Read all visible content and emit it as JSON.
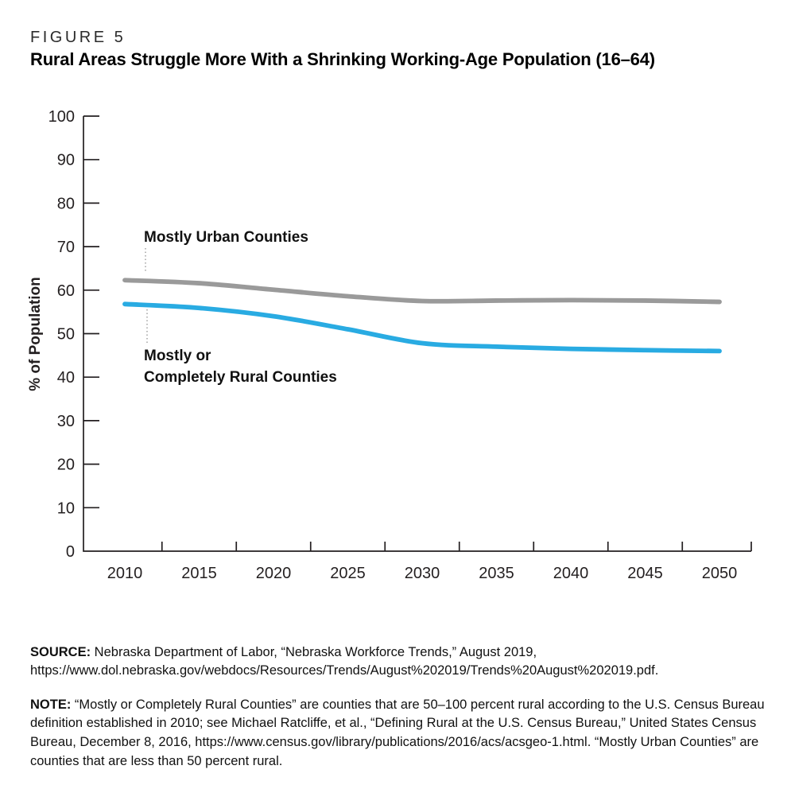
{
  "figure": {
    "label": "FIGURE 5",
    "title": "Rural Areas Struggle More With a Shrinking Working-Age Population (16–64)"
  },
  "chart_data": {
    "type": "line",
    "x": [
      2010,
      2015,
      2020,
      2025,
      2030,
      2035,
      2040,
      2045,
      2050
    ],
    "xtick_labels": [
      "2010",
      "2015",
      "2020",
      "2025",
      "2030",
      "2035",
      "2040",
      "2045",
      "2050"
    ],
    "series": [
      {
        "name": "Mostly Urban Counties",
        "color": "#9A9A9A",
        "values": [
          62.3,
          61.6,
          60.1,
          58.6,
          57.5,
          57.6,
          57.7,
          57.6,
          57.3
        ]
      },
      {
        "name": "Mostly or Completely Rural Counties",
        "color": "#29ABE2",
        "values": [
          56.8,
          55.9,
          54.0,
          51.0,
          47.8,
          47.0,
          46.5,
          46.2,
          46.0
        ]
      }
    ],
    "title": "",
    "xlabel": "",
    "ylabel": "% of Population",
    "ylim": [
      0,
      100
    ],
    "ytick_step": 10,
    "grid": false,
    "legend_position": "inline-annotations",
    "axis_color": "#231F20",
    "annotations": [
      {
        "lines": [
          "Mostly Urban Counties"
        ]
      },
      {
        "lines": [
          "Mostly or",
          "Completely Rural Counties"
        ]
      }
    ]
  },
  "source": {
    "label": "SOURCE:",
    "text": " Nebraska Department of Labor, “Nebraska Workforce Trends,” August 2019, https://www.dol.nebraska.gov/webdocs/Resources/Trends/August%202019/Trends%20August%202019.pdf."
  },
  "note": {
    "label": "NOTE:",
    "text": " “Mostly or Completely Rural Counties” are counties that are 50–100 percent rural according to the U.S. Census Bureau definition established in 2010; see Michael Ratcliffe, et al., “Defining Rural at the U.S. Census Bureau,” United States Census Bureau, December 8, 2016, https://www.census.gov/library/publications/2016/acs/acsgeo-1.html. “Mostly Urban Counties” are counties that are less than 50 percent rural."
  }
}
